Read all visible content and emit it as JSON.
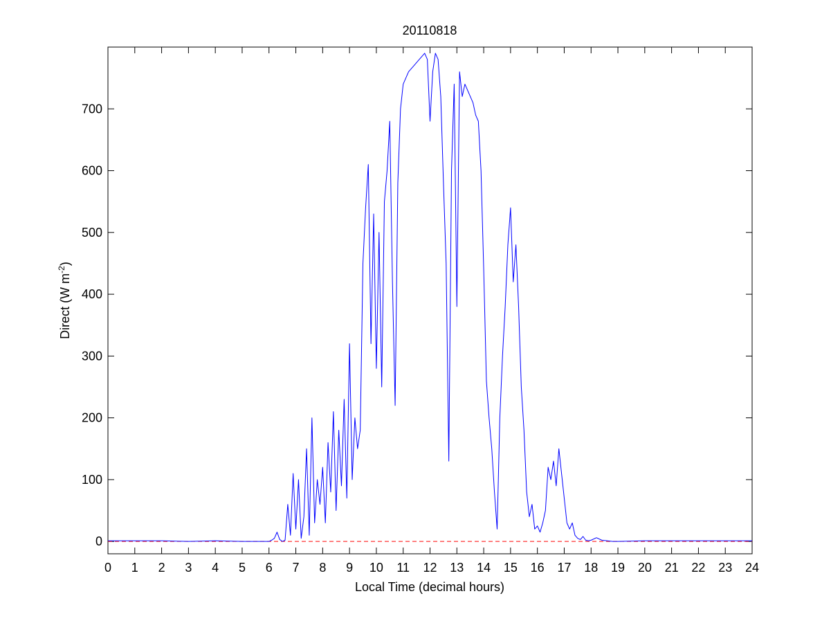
{
  "chart_data": {
    "type": "line",
    "title": "20110818",
    "x_label": "Local Time (decimal hours)",
    "y_label": {
      "main": "Direct (W m",
      "sup": "-2",
      "close": ")"
    },
    "xlim": [
      0,
      24
    ],
    "ylim": [
      -20,
      800
    ],
    "xticks": [
      0,
      1,
      2,
      3,
      4,
      5,
      6,
      7,
      8,
      9,
      10,
      11,
      12,
      13,
      14,
      15,
      16,
      17,
      18,
      19,
      20,
      21,
      22,
      23,
      24
    ],
    "yticks": [
      0,
      100,
      200,
      300,
      400,
      500,
      600,
      700
    ],
    "grid": false,
    "series": [
      {
        "color": "#ff0000",
        "dash": true,
        "x": [
          0,
          24
        ],
        "values": [
          0,
          0
        ]
      },
      {
        "color": "#0000ff",
        "dash": false,
        "x": [
          0,
          1,
          2,
          3,
          4,
          5,
          6,
          6.1,
          6.2,
          6.3,
          6.4,
          6.5,
          6.6,
          6.7,
          6.8,
          6.9,
          7,
          7.1,
          7.2,
          7.3,
          7.4,
          7.5,
          7.6,
          7.7,
          7.8,
          7.9,
          8,
          8.1,
          8.2,
          8.3,
          8.4,
          8.5,
          8.6,
          8.7,
          8.8,
          8.9,
          9,
          9.1,
          9.2,
          9.3,
          9.4,
          9.5,
          9.6,
          9.7,
          9.8,
          9.9,
          10,
          10.1,
          10.2,
          10.3,
          10.4,
          10.5,
          10.6,
          10.7,
          10.8,
          10.9,
          11,
          11.2,
          11.4,
          11.6,
          11.8,
          11.9,
          12,
          12.1,
          12.2,
          12.3,
          12.4,
          12.5,
          12.6,
          12.7,
          12.8,
          12.9,
          13,
          13.1,
          13.2,
          13.3,
          13.4,
          13.5,
          13.6,
          13.7,
          13.8,
          13.9,
          14,
          14.1,
          14.2,
          14.3,
          14.4,
          14.5,
          14.6,
          14.7,
          14.8,
          14.9,
          15,
          15.1,
          15.2,
          15.3,
          15.4,
          15.5,
          15.6,
          15.7,
          15.8,
          15.9,
          16,
          16.1,
          16.2,
          16.3,
          16.4,
          16.5,
          16.6,
          16.7,
          16.8,
          16.9,
          17,
          17.1,
          17.2,
          17.3,
          17.4,
          17.5,
          17.6,
          17.7,
          17.8,
          17.9,
          18,
          18.2,
          18.4,
          18.6,
          18.8,
          19,
          20,
          21,
          22,
          23,
          24
        ],
        "values": [
          1,
          1,
          1,
          0,
          1,
          0,
          0,
          2,
          5,
          15,
          3,
          0,
          2,
          60,
          10,
          110,
          20,
          100,
          5,
          40,
          150,
          10,
          200,
          30,
          100,
          60,
          120,
          30,
          160,
          80,
          210,
          50,
          180,
          90,
          230,
          70,
          320,
          100,
          200,
          150,
          180,
          450,
          540,
          610,
          320,
          530,
          280,
          500,
          250,
          550,
          600,
          680,
          420,
          220,
          580,
          700,
          740,
          760,
          770,
          780,
          790,
          780,
          680,
          760,
          790,
          780,
          720,
          580,
          450,
          130,
          600,
          740,
          380,
          760,
          720,
          740,
          730,
          720,
          710,
          690,
          680,
          600,
          440,
          260,
          200,
          150,
          80,
          20,
          200,
          300,
          380,
          480,
          540,
          420,
          480,
          380,
          250,
          180,
          80,
          40,
          60,
          20,
          25,
          15,
          30,
          50,
          120,
          100,
          130,
          90,
          150,
          110,
          70,
          30,
          20,
          30,
          10,
          5,
          3,
          8,
          2,
          1,
          2,
          6,
          2,
          1,
          0,
          0,
          1,
          1,
          1,
          1,
          1
        ]
      }
    ]
  }
}
